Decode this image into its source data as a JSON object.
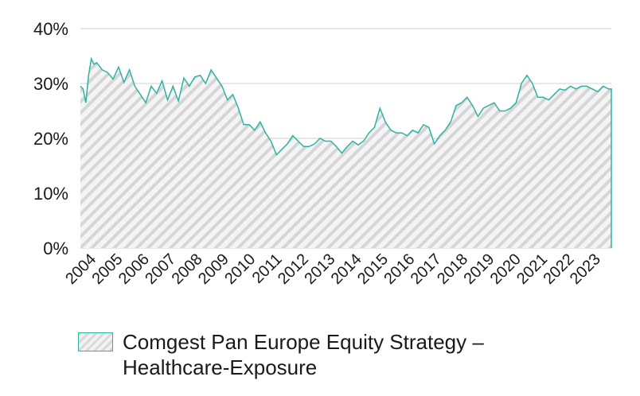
{
  "chart_data": {
    "type": "area",
    "title": "",
    "xlabel": "",
    "ylabel": "",
    "ylim": [
      0,
      40
    ],
    "yticks": [
      "0%",
      "10%",
      "20%",
      "30%",
      "40%"
    ],
    "ytick_values": [
      0,
      10,
      20,
      30,
      40
    ],
    "xticks": [
      "2004",
      "2005",
      "2006",
      "2007",
      "2008",
      "2009",
      "2010",
      "2011",
      "2012",
      "2013",
      "2014",
      "2015",
      "2016",
      "2017",
      "2018",
      "2019",
      "2020",
      "2021",
      "2022",
      "2023"
    ],
    "grid": true,
    "legend_position": "bottom-left",
    "series": [
      {
        "name": "Comgest Pan Europe Equity Strategy – Healthcare-Exposure",
        "color": "#2fb3a0",
        "fill": "hatched-grey",
        "x": [
          2004.0,
          2004.1,
          2004.2,
          2004.3,
          2004.4,
          2004.5,
          2004.6,
          2004.8,
          2005.0,
          2005.2,
          2005.4,
          2005.6,
          2005.8,
          2006.0,
          2006.2,
          2006.4,
          2006.6,
          2006.8,
          2007.0,
          2007.2,
          2007.4,
          2007.6,
          2007.8,
          2008.0,
          2008.2,
          2008.4,
          2008.6,
          2008.8,
          2009.0,
          2009.2,
          2009.4,
          2009.6,
          2009.8,
          2010.0,
          2010.2,
          2010.4,
          2010.6,
          2010.8,
          2011.0,
          2011.2,
          2011.4,
          2011.6,
          2011.8,
          2012.0,
          2012.2,
          2012.4,
          2012.6,
          2012.8,
          2013.0,
          2013.2,
          2013.4,
          2013.6,
          2013.8,
          2014.0,
          2014.2,
          2014.4,
          2014.6,
          2014.8,
          2015.0,
          2015.2,
          2015.4,
          2015.6,
          2015.8,
          2016.0,
          2016.2,
          2016.4,
          2016.6,
          2016.8,
          2017.0,
          2017.2,
          2017.4,
          2017.6,
          2017.8,
          2018.0,
          2018.2,
          2018.4,
          2018.6,
          2018.8,
          2019.0,
          2019.2,
          2019.4,
          2019.6,
          2019.8,
          2020.0,
          2020.2,
          2020.4,
          2020.6,
          2020.8,
          2021.0,
          2021.2,
          2021.4,
          2021.6,
          2021.8,
          2022.0,
          2022.2,
          2022.4,
          2022.6,
          2022.8,
          2023.0,
          2023.2,
          2023.4,
          2023.5
        ],
        "values": [
          29.5,
          29.0,
          26.5,
          31.5,
          34.5,
          33.5,
          33.8,
          32.5,
          32.0,
          30.8,
          33.0,
          30.2,
          32.5,
          29.5,
          28.0,
          26.5,
          29.5,
          28.2,
          30.5,
          27.0,
          29.5,
          26.8,
          31.0,
          29.5,
          31.2,
          31.5,
          30.0,
          32.5,
          31.0,
          29.5,
          27.0,
          28.0,
          25.5,
          22.5,
          22.5,
          21.5,
          23.0,
          21.0,
          19.5,
          17.0,
          18.0,
          19.0,
          20.5,
          19.5,
          18.5,
          18.5,
          19.0,
          20.0,
          19.5,
          19.5,
          18.5,
          17.3,
          18.5,
          19.5,
          18.8,
          19.5,
          21.0,
          22.0,
          25.5,
          23.0,
          21.5,
          21.0,
          21.0,
          20.5,
          21.5,
          21.0,
          22.5,
          22.0,
          19.0,
          20.5,
          21.5,
          23.0,
          26.0,
          26.5,
          27.5,
          26.0,
          24.0,
          25.5,
          26.0,
          26.5,
          25.0,
          25.0,
          25.5,
          26.5,
          30.0,
          31.5,
          30.0,
          27.5,
          27.5,
          27.0,
          28.0,
          29.0,
          28.8,
          29.5,
          29.0,
          29.5,
          29.5,
          29.0,
          28.5,
          29.5,
          29.0,
          29.0
        ]
      }
    ]
  }
}
